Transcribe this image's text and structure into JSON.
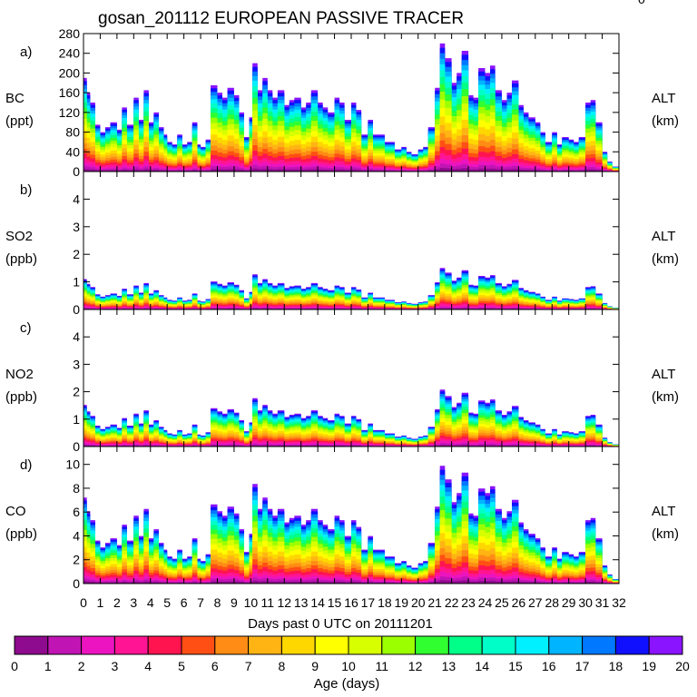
{
  "figure": {
    "title": "gosan_201112 EUROPEAN PASSIVE TRACER",
    "corner_mark": "0"
  },
  "chart_data": [
    {
      "panel": "a)",
      "type": "area",
      "ylabel": "BC",
      "yunits": "(ppt)",
      "right_label": "ALT",
      "right_units": "(km)",
      "ylim": [
        0,
        280
      ],
      "yticks": [
        0,
        40,
        80,
        120,
        160,
        200,
        240,
        280
      ],
      "xlim": [
        0,
        32
      ],
      "x": [
        0,
        0.2,
        0.4,
        0.7,
        1,
        1.3,
        1.6,
        2,
        2.3,
        2.6,
        3,
        3.3,
        3.6,
        3.9,
        4.2,
        4.5,
        4.8,
        5,
        5.3,
        5.6,
        5.9,
        6.2,
        6.5,
        6.8,
        7,
        7.3,
        7.6,
        8,
        8.3,
        8.6,
        9,
        9.3,
        9.6,
        9.9,
        10.1,
        10.4,
        10.7,
        11,
        11.3,
        11.6,
        12,
        12.3,
        12.6,
        13,
        13.3,
        13.6,
        14,
        14.3,
        14.6,
        15,
        15.3,
        15.6,
        16,
        16.3,
        16.6,
        17,
        17.3,
        17.6,
        18,
        18.3,
        18.6,
        19,
        19.3,
        19.6,
        20,
        20.3,
        20.6,
        21,
        21.3,
        21.6,
        22,
        22.3,
        22.6,
        23,
        23.3,
        23.6,
        24,
        24.3,
        24.6,
        25,
        25.3,
        25.6,
        26,
        26.3,
        26.6,
        27,
        27.3,
        27.6,
        28,
        28.3,
        28.6,
        29,
        29.3,
        29.6,
        30,
        30.3,
        30.6,
        31,
        31.3,
        31.6,
        32
      ],
      "total_bc": [
        190,
        160,
        140,
        95,
        80,
        90,
        100,
        85,
        130,
        95,
        150,
        105,
        165,
        100,
        120,
        90,
        75,
        60,
        55,
        75,
        55,
        60,
        100,
        55,
        50,
        65,
        175,
        160,
        150,
        170,
        155,
        120,
        70,
        110,
        220,
        165,
        190,
        165,
        150,
        165,
        135,
        145,
        150,
        130,
        140,
        165,
        140,
        130,
        120,
        150,
        140,
        105,
        140,
        125,
        75,
        105,
        75,
        75,
        60,
        60,
        45,
        50,
        40,
        35,
        45,
        50,
        90,
        170,
        260,
        230,
        180,
        200,
        245,
        155,
        150,
        210,
        200,
        215,
        165,
        145,
        160,
        185,
        135,
        120,
        110,
        100,
        80,
        60,
        80,
        55,
        70,
        65,
        60,
        70,
        140,
        145,
        100,
        40,
        20,
        10,
        0
      ]
    },
    {
      "panel": "b)",
      "type": "area",
      "ylabel": "SO2",
      "yunits": "(ppb)",
      "right_label": "ALT",
      "right_units": "(km)",
      "ylim": [
        0,
        5
      ],
      "yticks": [
        0,
        1,
        2,
        3,
        4
      ],
      "xlim": [
        0,
        32
      ],
      "scale_from_bc": 0.0058
    },
    {
      "panel": "c)",
      "type": "area",
      "ylabel": "NO2",
      "yunits": "(ppb)",
      "right_label": "ALT",
      "right_units": "(km)",
      "ylim": [
        0,
        5
      ],
      "yticks": [
        0,
        1,
        2,
        3,
        4
      ],
      "xlim": [
        0,
        32
      ],
      "scale_from_bc": 0.008
    },
    {
      "panel": "d)",
      "type": "area",
      "ylabel": "CO",
      "yunits": "(ppb)",
      "right_label": "ALT",
      "right_units": "(km)",
      "ylim": [
        0,
        11.5
      ],
      "yticks": [
        0,
        2,
        4,
        6,
        8,
        10
      ],
      "xlim": [
        0,
        32
      ],
      "scale_from_bc": 0.038
    }
  ],
  "x_axis": {
    "ticks": [
      0,
      1,
      2,
      3,
      4,
      5,
      6,
      7,
      8,
      9,
      10,
      11,
      12,
      13,
      14,
      15,
      16,
      17,
      18,
      19,
      20,
      21,
      22,
      23,
      24,
      25,
      26,
      27,
      28,
      29,
      30,
      31,
      32
    ],
    "label": "Days past 0 UTC on 20111201"
  },
  "colorbar": {
    "label": "Age (days)",
    "ticks": [
      0,
      1,
      2,
      3,
      4,
      5,
      6,
      7,
      8,
      9,
      10,
      11,
      12,
      13,
      14,
      15,
      16,
      17,
      18,
      19,
      20
    ],
    "colors": [
      "#8e0a8e",
      "#c014b4",
      "#ec14c0",
      "#ff1493",
      "#ff1450",
      "#ff4f14",
      "#ff8c14",
      "#ffb414",
      "#ffd700",
      "#ffff00",
      "#d8ff00",
      "#9cff00",
      "#30ff30",
      "#00ff88",
      "#00ffc8",
      "#00f0ff",
      "#00b4ff",
      "#0078ff",
      "#1010ff",
      "#8a14ff"
    ]
  }
}
